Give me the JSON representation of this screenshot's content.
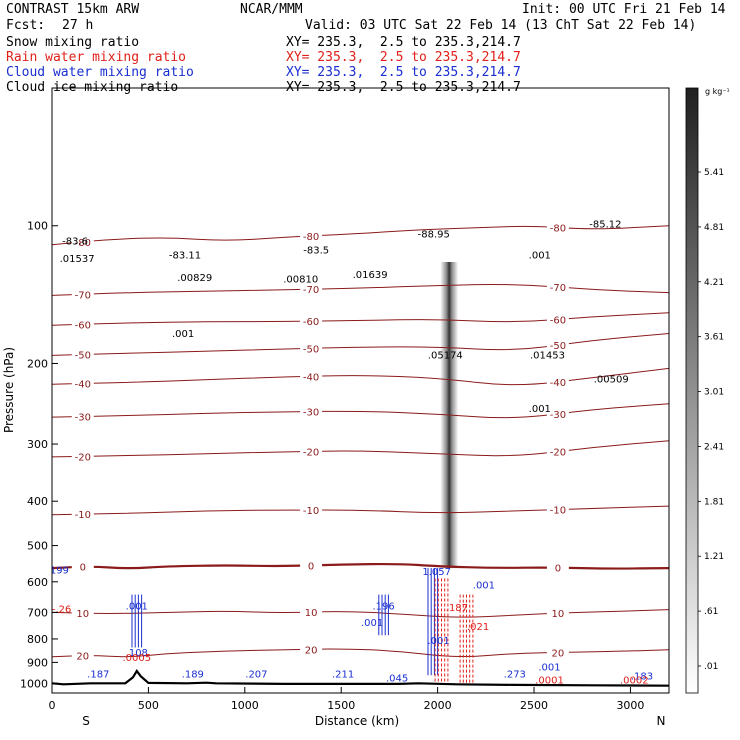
{
  "header": {
    "model": "CONTRAST 15km ARW",
    "org": "NCAR/MMM",
    "init": "Init: 00 UTC Fri 21 Feb 14",
    "fcst_label": "Fcst:",
    "fcst_value": "27 h",
    "valid": "Valid: 03 UTC Sat 22 Feb 14 (13 ChT Sat 22 Feb 14)",
    "fields": [
      {
        "name": "Snow mixing ratio",
        "xy": "XY= 235.3,  2.5 to 235.3,214.7",
        "color": "#000000"
      },
      {
        "name": "Rain water mixing ratio",
        "xy": "XY= 235.3,  2.5 to 235.3,214.7",
        "color": "#e0201a"
      },
      {
        "name": "Cloud water mixing ratio",
        "xy": "XY= 235.3,  2.5 to 235.3,214.7",
        "color": "#1a2fd0"
      },
      {
        "name": "Cloud ice mixing ratio",
        "xy": "XY= 235.3,  2.5 to 235.3,214.7",
        "color": "#000000"
      }
    ]
  },
  "chart_data": {
    "type": "cross-section contour",
    "xlabel": "Distance (km)",
    "ylabel": "Pressure (hPa)",
    "xlim": [
      0,
      3200
    ],
    "ylim": [
      1050,
      50
    ],
    "y_scale": "log",
    "x_ticks": [
      0,
      500,
      1000,
      1500,
      2000,
      2500,
      3000
    ],
    "y_ticks": [
      100,
      200,
      300,
      400,
      500,
      600,
      700,
      800,
      900,
      1000
    ],
    "endpoint_left": "S",
    "endpoint_right": "N",
    "colorbar": {
      "unit": "g kg⁻¹",
      "labels": [
        "5.41",
        "4.81",
        "4.21",
        "3.61",
        "3.01",
        "2.41",
        "1.81",
        "1.21",
        ".61",
        ".01"
      ]
    },
    "temperature_contours": [
      {
        "label": "-80",
        "p": 108,
        "points": [
          [
            0,
            110
          ],
          [
            300,
            107
          ],
          [
            600,
            106
          ],
          [
            900,
            108
          ],
          [
            1200,
            106
          ],
          [
            1600,
            104
          ],
          [
            1900,
            102
          ],
          [
            2200,
            101
          ],
          [
            2500,
            100
          ],
          [
            2800,
            102
          ],
          [
            3200,
            100
          ]
        ]
      },
      {
        "label": "-70",
        "p": 140,
        "points": [
          [
            0,
            142
          ],
          [
            400,
            140
          ],
          [
            800,
            139
          ],
          [
            1200,
            138
          ],
          [
            1600,
            137
          ],
          [
            2000,
            135
          ],
          [
            2400,
            134
          ],
          [
            2800,
            138
          ],
          [
            3200,
            140
          ]
        ]
      },
      {
        "label": "-60",
        "p": 165,
        "points": [
          [
            0,
            165
          ],
          [
            400,
            163
          ],
          [
            800,
            162
          ],
          [
            1200,
            162
          ],
          [
            1600,
            161
          ],
          [
            2000,
            160
          ],
          [
            2400,
            163
          ],
          [
            2800,
            158
          ],
          [
            3200,
            155
          ]
        ]
      },
      {
        "label": "-50",
        "p": 185,
        "points": [
          [
            0,
            192
          ],
          [
            400,
            190
          ],
          [
            800,
            188
          ],
          [
            1200,
            186
          ],
          [
            1600,
            184
          ],
          [
            2000,
            184
          ],
          [
            2400,
            188
          ],
          [
            2800,
            178
          ],
          [
            3200,
            172
          ]
        ]
      },
      {
        "label": "-40",
        "p": 215,
        "points": [
          [
            0,
            222
          ],
          [
            400,
            220
          ],
          [
            800,
            217
          ],
          [
            1200,
            214
          ],
          [
            1600,
            212
          ],
          [
            2000,
            215
          ],
          [
            2400,
            225
          ],
          [
            2800,
            215
          ],
          [
            3200,
            205
          ]
        ]
      },
      {
        "label": "-30",
        "p": 255,
        "points": [
          [
            0,
            262
          ],
          [
            400,
            260
          ],
          [
            800,
            257
          ],
          [
            1200,
            255
          ],
          [
            1600,
            254
          ],
          [
            2000,
            258
          ],
          [
            2400,
            265
          ],
          [
            2800,
            252
          ],
          [
            3200,
            245
          ]
        ]
      },
      {
        "label": "-20",
        "p": 305,
        "points": [
          [
            0,
            320
          ],
          [
            400,
            318
          ],
          [
            800,
            315
          ],
          [
            1200,
            312
          ],
          [
            1600,
            310
          ],
          [
            2000,
            315
          ],
          [
            2400,
            320
          ],
          [
            2800,
            305
          ],
          [
            3200,
            295
          ]
        ]
      },
      {
        "label": "-10",
        "p": 415,
        "points": [
          [
            0,
            428
          ],
          [
            400,
            425
          ],
          [
            800,
            420
          ],
          [
            1200,
            418
          ],
          [
            1600,
            418
          ],
          [
            2000,
            425
          ],
          [
            2400,
            420
          ],
          [
            2800,
            415
          ],
          [
            3200,
            410
          ]
        ]
      },
      {
        "label": "0",
        "p": 555,
        "points": [
          [
            0,
            560
          ],
          [
            200,
            555
          ],
          [
            400,
            562
          ],
          [
            600,
            555
          ],
          [
            900,
            552
          ],
          [
            1200,
            555
          ],
          [
            1500,
            550
          ],
          [
            1800,
            548
          ],
          [
            2000,
            555
          ],
          [
            2300,
            560
          ],
          [
            2600,
            558
          ],
          [
            2900,
            562
          ],
          [
            3200,
            560
          ]
        ]
      },
      {
        "label": "10",
        "p": 700,
        "points": [
          [
            0,
            700
          ],
          [
            300,
            705
          ],
          [
            600,
            700
          ],
          [
            900,
            695
          ],
          [
            1200,
            702
          ],
          [
            1500,
            695
          ],
          [
            1800,
            705
          ],
          [
            2100,
            720
          ],
          [
            2400,
            710
          ],
          [
            2700,
            700
          ],
          [
            3000,
            695
          ],
          [
            3200,
            690
          ]
        ]
      },
      {
        "label": "20",
        "p": 850,
        "points": [
          [
            0,
            875
          ],
          [
            200,
            868
          ],
          [
            400,
            878
          ],
          [
            600,
            860
          ],
          [
            900,
            850
          ],
          [
            1200,
            845
          ],
          [
            1500,
            840
          ],
          [
            1800,
            850
          ],
          [
            2100,
            880
          ],
          [
            2400,
            860
          ],
          [
            2700,
            855
          ],
          [
            3000,
            850
          ],
          [
            3200,
            845
          ]
        ]
      }
    ],
    "moist_band": {
      "x_center": 2060,
      "p_top": 120,
      "p_bottom": 560
    },
    "hydrometeor_columns": [
      {
        "field": "cloud water",
        "x": 440,
        "p_top": 640,
        "p_bottom": 835
      },
      {
        "field": "cloud water",
        "x": 1975,
        "p_top": 560,
        "p_bottom": 960
      },
      {
        "field": "cloud water",
        "x": 1720,
        "p_top": 640,
        "p_bottom": 785
      },
      {
        "field": "rain water",
        "x": 2020,
        "p_top": 590,
        "p_bottom": 1000
      },
      {
        "field": "rain water",
        "x": 2150,
        "p_top": 640,
        "p_bottom": 1000
      }
    ],
    "annotations": [
      {
        "text": "-83.6",
        "x": 120,
        "p": 110,
        "color": "#000000"
      },
      {
        "text": ".01537",
        "x": 130,
        "p": 120,
        "color": "#000000"
      },
      {
        "text": "-83.11",
        "x": 690,
        "p": 118,
        "color": "#000000"
      },
      {
        "text": ".00829",
        "x": 740,
        "p": 132,
        "color": "#000000"
      },
      {
        "text": "-83.5",
        "x": 1370,
        "p": 115,
        "color": "#000000"
      },
      {
        "text": ".00810",
        "x": 1290,
        "p": 133,
        "color": "#000000"
      },
      {
        "text": ".01639",
        "x": 1650,
        "p": 130,
        "color": "#000000"
      },
      {
        "text": "-88.95",
        "x": 1980,
        "p": 106,
        "color": "#000000"
      },
      {
        "text": "-85.12",
        "x": 2870,
        "p": 101,
        "color": "#000000"
      },
      {
        "text": ".001",
        "x": 2530,
        "p": 118,
        "color": "#000000"
      },
      {
        "text": ".001",
        "x": 680,
        "p": 175,
        "color": "#000000"
      },
      {
        "text": ".05174",
        "x": 2040,
        "p": 195,
        "color": "#000000"
      },
      {
        "text": ".01453",
        "x": 2570,
        "p": 195,
        "color": "#000000"
      },
      {
        "text": ".00509",
        "x": 2900,
        "p": 220,
        "color": "#000000"
      },
      {
        "text": ".001",
        "x": 2530,
        "p": 255,
        "color": "#000000"
      },
      {
        "text": ".199",
        "x": 30,
        "p": 575,
        "color": "#1a2fd0"
      },
      {
        "text": "1.057",
        "x": 1995,
        "p": 580,
        "color": "#1a2fd0"
      },
      {
        "text": ".001",
        "x": 2240,
        "p": 620,
        "color": "#1a2fd0"
      },
      {
        "text": ".001",
        "x": 440,
        "p": 690,
        "color": "#1a2fd0"
      },
      {
        "text": ".196",
        "x": 1720,
        "p": 690,
        "color": "#1a2fd0"
      },
      {
        "text": ".001",
        "x": 1660,
        "p": 750,
        "color": "#1a2fd0"
      },
      {
        "text": ".187",
        "x": 2100,
        "p": 695,
        "color": "#e0201a"
      },
      {
        "text": ".021",
        "x": 2210,
        "p": 765,
        "color": "#e0201a"
      },
      {
        "text": ".001",
        "x": 2005,
        "p": 820,
        "color": "#1a2fd0"
      },
      {
        "text": "-.26",
        "x": 50,
        "p": 700,
        "color": "#e0201a"
      },
      {
        "text": ".108",
        "x": 440,
        "p": 872,
        "color": "#1a2fd0"
      },
      {
        "text": ".0005",
        "x": 440,
        "p": 893,
        "color": "#e0201a"
      },
      {
        "text": ".187",
        "x": 240,
        "p": 970,
        "color": "#1a2fd0"
      },
      {
        "text": ".189",
        "x": 730,
        "p": 970,
        "color": "#1a2fd0"
      },
      {
        "text": ".207",
        "x": 1060,
        "p": 970,
        "color": "#1a2fd0"
      },
      {
        "text": ".211",
        "x": 1510,
        "p": 970,
        "color": "#1a2fd0"
      },
      {
        "text": ".045",
        "x": 1790,
        "p": 990,
        "color": "#1a2fd0"
      },
      {
        "text": ".273",
        "x": 2400,
        "p": 970,
        "color": "#1a2fd0"
      },
      {
        "text": ".001",
        "x": 2580,
        "p": 938,
        "color": "#1a2fd0"
      },
      {
        "text": ".0001",
        "x": 2580,
        "p": 1000,
        "color": "#e0201a"
      },
      {
        "text": ".183",
        "x": 3060,
        "p": 980,
        "color": "#1a2fd0"
      },
      {
        "text": ".0002",
        "x": 3020,
        "p": 1000,
        "color": "#e0201a"
      }
    ],
    "terrain": [
      [
        0,
        1000
      ],
      [
        60,
        1005
      ],
      [
        200,
        1000
      ],
      [
        380,
        1000
      ],
      [
        420,
        970
      ],
      [
        440,
        940
      ],
      [
        460,
        965
      ],
      [
        500,
        998
      ],
      [
        700,
        1000
      ],
      [
        800,
        997
      ],
      [
        850,
        1000
      ],
      [
        1200,
        1003
      ],
      [
        1800,
        1003
      ],
      [
        1900,
        1000
      ],
      [
        2100,
        1005
      ],
      [
        2400,
        1008
      ],
      [
        2800,
        1010
      ],
      [
        3200,
        1012
      ]
    ]
  }
}
